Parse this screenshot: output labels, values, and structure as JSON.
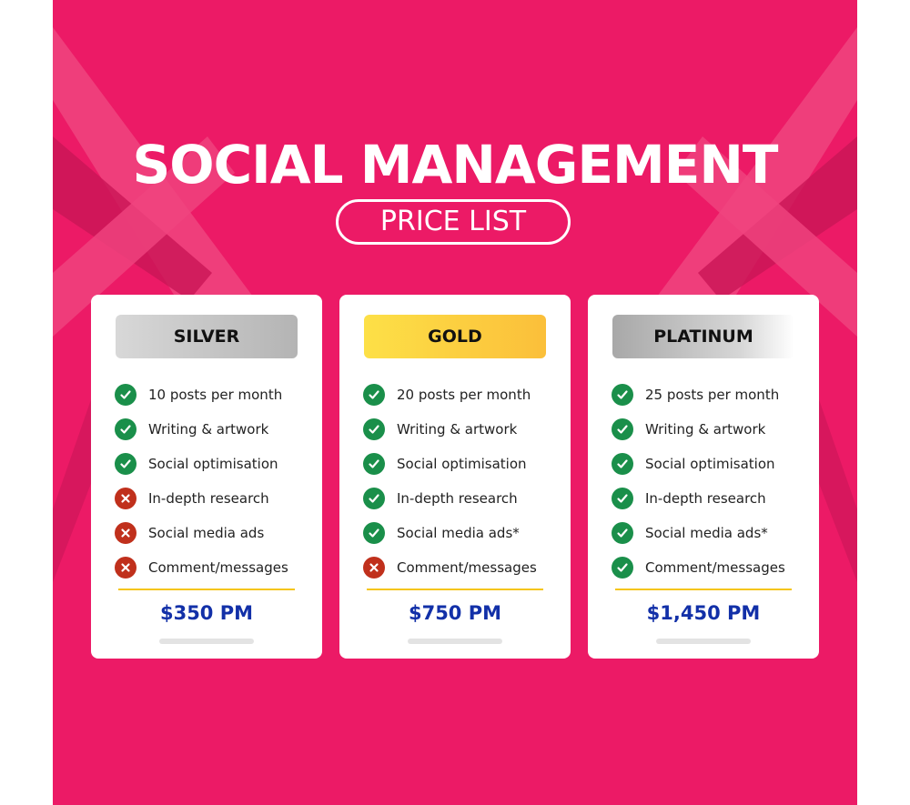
{
  "title": "SOCIAL MANAGEMENT",
  "subtitle": "PRICE LIST",
  "colors": {
    "background": "#ec1a66",
    "check": "#1a8f4a",
    "cross": "#c0301c",
    "price": "#1230a8",
    "divider": "#f5c518"
  },
  "plans": [
    {
      "name": "SILVER",
      "price": "$350 PM",
      "features": [
        {
          "label": "10 posts per month",
          "included": true,
          "icon": "check-icon"
        },
        {
          "label": "Writing & artwork",
          "included": true,
          "icon": "check-icon"
        },
        {
          "label": "Social optimisation",
          "included": true,
          "icon": "check-icon"
        },
        {
          "label": "In-depth research",
          "included": false,
          "icon": "cross-icon"
        },
        {
          "label": "Social media ads",
          "included": false,
          "icon": "cross-icon"
        },
        {
          "label": "Comment/messages",
          "included": false,
          "icon": "cross-icon"
        }
      ]
    },
    {
      "name": "GOLD",
      "price": "$750 PM",
      "features": [
        {
          "label": "20 posts per month",
          "included": true,
          "icon": "check-icon"
        },
        {
          "label": "Writing & artwork",
          "included": true,
          "icon": "check-icon"
        },
        {
          "label": "Social optimisation",
          "included": true,
          "icon": "check-icon"
        },
        {
          "label": "In-depth research",
          "included": true,
          "icon": "check-icon"
        },
        {
          "label": "Social media ads*",
          "included": true,
          "icon": "check-icon"
        },
        {
          "label": "Comment/messages",
          "included": false,
          "icon": "cross-icon"
        }
      ]
    },
    {
      "name": "PLATINUM",
      "price": "$1,450 PM",
      "features": [
        {
          "label": "25 posts per month",
          "included": true,
          "icon": "check-icon"
        },
        {
          "label": "Writing & artwork",
          "included": true,
          "icon": "check-icon"
        },
        {
          "label": "Social optimisation",
          "included": true,
          "icon": "check-icon"
        },
        {
          "label": "In-depth research",
          "included": true,
          "icon": "check-icon"
        },
        {
          "label": "Social media ads*",
          "included": true,
          "icon": "check-icon"
        },
        {
          "label": "Comment/messages",
          "included": true,
          "icon": "check-icon"
        }
      ]
    }
  ]
}
